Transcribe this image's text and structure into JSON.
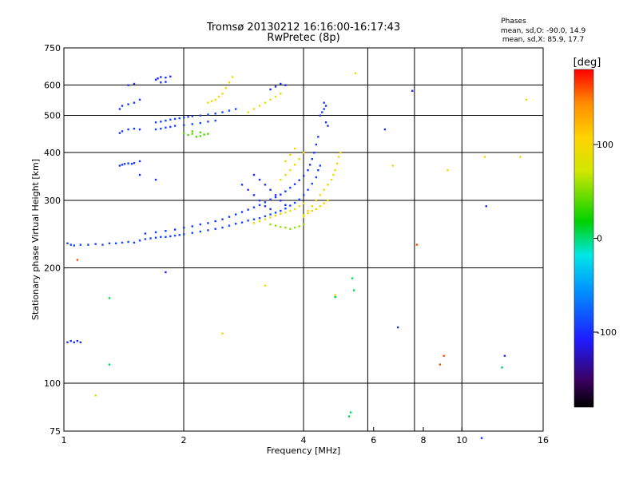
{
  "header": {
    "title": "Tromsø 20130212 16:16:00-16:17:43",
    "subtitle": "RwPretec (8p)",
    "phase_title": "Phases",
    "phase_o": "mean, sd,O: -90.0, 14.9",
    "phase_x": "mean, sd,X:  85.9, 17.7"
  },
  "chart_data": {
    "type": "scatter",
    "xlabel": "Frequency [MHz]",
    "ylabel": "Stationary phase Virtual Height [km]",
    "x_scale": "log",
    "y_scale": "log",
    "xlim": [
      1,
      16
    ],
    "ylim": [
      75,
      750
    ],
    "x_ticks": [
      "1",
      "2",
      "4",
      "6",
      "8",
      "10",
      "16"
    ],
    "x_tick_values": [
      1,
      2,
      4,
      6,
      8,
      10,
      16
    ],
    "y_ticks": [
      "75",
      "100",
      "200",
      "300",
      "400",
      "500",
      "600",
      "750"
    ],
    "y_tick_values": [
      75,
      100,
      200,
      300,
      400,
      500,
      600,
      750
    ],
    "x_gridlines": [
      2,
      4,
      5.8,
      7.6,
      10
    ],
    "y_gridlines": [
      100,
      200,
      300,
      400,
      500,
      600
    ],
    "grid": true,
    "colorbar": {
      "label": "[deg]",
      "range": [
        -180,
        180
      ],
      "ticks": [
        "100",
        "0",
        "-100"
      ],
      "tick_values": [
        100,
        0,
        -100
      ]
    },
    "series": [
      {
        "phase": -90,
        "points": [
          [
            1.02,
            232
          ],
          [
            1.04,
            230
          ],
          [
            1.06,
            229
          ],
          [
            1.1,
            230
          ],
          [
            1.15,
            230
          ],
          [
            1.2,
            231
          ],
          [
            1.25,
            230
          ],
          [
            1.3,
            232
          ],
          [
            1.35,
            232
          ],
          [
            1.4,
            233
          ],
          [
            1.45,
            234
          ],
          [
            1.5,
            233
          ],
          [
            1.55,
            236
          ],
          [
            1.6,
            238
          ],
          [
            1.65,
            239
          ],
          [
            1.7,
            240
          ],
          [
            1.75,
            241
          ],
          [
            1.8,
            241
          ],
          [
            1.85,
            242
          ],
          [
            1.9,
            243
          ],
          [
            1.95,
            244
          ],
          [
            2.0,
            245
          ],
          [
            2.1,
            247
          ],
          [
            2.2,
            249
          ],
          [
            2.3,
            251
          ],
          [
            2.4,
            253
          ],
          [
            2.5,
            255
          ],
          [
            2.6,
            258
          ],
          [
            2.7,
            261
          ],
          [
            2.8,
            263
          ],
          [
            2.9,
            266
          ],
          [
            3.0,
            268
          ],
          [
            3.1,
            270
          ],
          [
            3.2,
            273
          ],
          [
            3.3,
            276
          ],
          [
            3.4,
            279
          ],
          [
            3.5,
            282
          ],
          [
            3.6,
            286
          ],
          [
            3.7,
            291
          ],
          [
            3.8,
            296
          ],
          [
            3.9,
            302
          ],
          [
            4.0,
            310
          ],
          [
            4.1,
            320
          ],
          [
            4.2,
            332
          ],
          [
            4.3,
            345
          ],
          [
            4.35,
            360
          ],
          [
            4.4,
            370
          ]
        ]
      },
      {
        "phase": -95,
        "points": [
          [
            1.6,
            246
          ],
          [
            1.7,
            248
          ],
          [
            1.8,
            250
          ],
          [
            1.9,
            252
          ],
          [
            2.0,
            255
          ],
          [
            2.1,
            257
          ],
          [
            2.2,
            260
          ],
          [
            2.3,
            262
          ],
          [
            2.4,
            265
          ],
          [
            2.5,
            268
          ],
          [
            2.6,
            272
          ],
          [
            2.7,
            276
          ],
          [
            2.8,
            280
          ],
          [
            2.9,
            284
          ],
          [
            3.0,
            288
          ],
          [
            3.1,
            292
          ],
          [
            3.2,
            297
          ],
          [
            3.3,
            302
          ],
          [
            3.4,
            306
          ],
          [
            3.5,
            311
          ],
          [
            3.6,
            317
          ],
          [
            3.7,
            324
          ],
          [
            3.8,
            331
          ],
          [
            3.9,
            339
          ],
          [
            4.0,
            348
          ],
          [
            4.1,
            360
          ],
          [
            4.15,
            372
          ],
          [
            4.2,
            385
          ],
          [
            4.25,
            400
          ],
          [
            4.3,
            420
          ],
          [
            4.35,
            440
          ]
        ]
      },
      {
        "phase": -100,
        "points": [
          [
            1.02,
            128
          ],
          [
            1.04,
            129
          ],
          [
            1.06,
            128
          ],
          [
            1.08,
            129
          ],
          [
            1.1,
            128
          ]
        ]
      },
      {
        "phase": -95,
        "points": [
          [
            1.38,
            370
          ],
          [
            1.4,
            372
          ],
          [
            1.42,
            374
          ],
          [
            1.45,
            375
          ],
          [
            1.48,
            374
          ],
          [
            1.5,
            376
          ],
          [
            1.55,
            380
          ],
          [
            1.38,
            450
          ],
          [
            1.4,
            455
          ],
          [
            1.45,
            460
          ],
          [
            1.5,
            462
          ],
          [
            1.55,
            460
          ],
          [
            1.38,
            520
          ],
          [
            1.4,
            530
          ],
          [
            1.45,
            535
          ],
          [
            1.5,
            540
          ],
          [
            1.55,
            550
          ],
          [
            1.45,
            600
          ],
          [
            1.5,
            605
          ]
        ]
      },
      {
        "phase": -100,
        "points": [
          [
            1.7,
            620
          ],
          [
            1.72,
            625
          ],
          [
            1.75,
            630
          ],
          [
            1.8,
            628
          ],
          [
            1.85,
            632
          ],
          [
            1.75,
            610
          ],
          [
            1.8,
            612
          ]
        ]
      },
      {
        "phase": -90,
        "points": [
          [
            1.7,
            480
          ],
          [
            1.75,
            482
          ],
          [
            1.8,
            485
          ],
          [
            1.85,
            488
          ],
          [
            1.9,
            490
          ],
          [
            1.95,
            492
          ],
          [
            2.0,
            494
          ],
          [
            2.05,
            496
          ],
          [
            2.1,
            498
          ],
          [
            2.2,
            500
          ],
          [
            2.3,
            503
          ],
          [
            2.4,
            506
          ],
          [
            2.5,
            510
          ],
          [
            2.6,
            515
          ],
          [
            2.7,
            520
          ],
          [
            1.7,
            460
          ],
          [
            1.75,
            462
          ],
          [
            1.8,
            465
          ],
          [
            1.85,
            467
          ],
          [
            1.9,
            470
          ],
          [
            2.0,
            472
          ],
          [
            2.1,
            475
          ],
          [
            2.2,
            478
          ],
          [
            2.3,
            482
          ],
          [
            2.4,
            485
          ]
        ]
      },
      {
        "phase": 40,
        "points": [
          [
            2.0,
            450
          ],
          [
            2.05,
            445
          ],
          [
            2.1,
            448
          ],
          [
            2.15,
            440
          ],
          [
            2.2,
            442
          ],
          [
            2.25,
            446
          ],
          [
            2.3,
            448
          ],
          [
            2.1,
            455
          ],
          [
            2.2,
            452
          ]
        ]
      },
      {
        "phase": 100,
        "points": [
          [
            2.3,
            540
          ],
          [
            2.35,
            545
          ],
          [
            2.4,
            550
          ],
          [
            2.45,
            560
          ],
          [
            2.5,
            570
          ],
          [
            2.55,
            590
          ],
          [
            2.6,
            610
          ],
          [
            2.65,
            630
          ]
        ]
      },
      {
        "phase": 90,
        "points": [
          [
            2.9,
            510
          ],
          [
            3.0,
            520
          ],
          [
            3.1,
            530
          ],
          [
            3.2,
            540
          ],
          [
            3.3,
            550
          ],
          [
            3.4,
            560
          ],
          [
            3.5,
            570
          ]
        ]
      },
      {
        "phase": -100,
        "points": [
          [
            3.3,
            585
          ],
          [
            3.4,
            595
          ],
          [
            3.5,
            605
          ],
          [
            3.6,
            600
          ]
        ]
      },
      {
        "phase": -95,
        "points": [
          [
            4.4,
            500
          ],
          [
            4.45,
            510
          ],
          [
            4.5,
            520
          ],
          [
            4.55,
            530
          ],
          [
            4.5,
            540
          ],
          [
            4.55,
            480
          ],
          [
            4.6,
            470
          ]
        ]
      },
      {
        "phase": 100,
        "points": [
          [
            4.0,
            275
          ],
          [
            4.1,
            282
          ],
          [
            4.2,
            290
          ],
          [
            4.3,
            300
          ],
          [
            4.4,
            310
          ],
          [
            4.5,
            320
          ],
          [
            4.6,
            330
          ],
          [
            4.7,
            340
          ],
          [
            4.75,
            350
          ],
          [
            4.8,
            360
          ],
          [
            4.85,
            375
          ],
          [
            4.9,
            390
          ],
          [
            4.95,
            400
          ],
          [
            4.6,
            300
          ],
          [
            4.5,
            295
          ],
          [
            4.4,
            290
          ],
          [
            4.3,
            285
          ],
          [
            4.2,
            282
          ],
          [
            4.1,
            278
          ],
          [
            4.0,
            272
          ]
        ]
      },
      {
        "phase": 90,
        "points": [
          [
            3.0,
            262
          ],
          [
            3.1,
            265
          ],
          [
            3.2,
            268
          ],
          [
            3.3,
            271
          ],
          [
            3.4,
            274
          ],
          [
            3.5,
            277
          ],
          [
            3.6,
            279
          ],
          [
            3.7,
            282
          ],
          [
            3.8,
            285
          ],
          [
            3.9,
            290
          ],
          [
            4.0,
            295
          ]
        ]
      },
      {
        "phase": -100,
        "points": [
          [
            2.8,
            330
          ],
          [
            2.9,
            320
          ],
          [
            3.0,
            310
          ],
          [
            3.1,
            300
          ],
          [
            3.2,
            290
          ],
          [
            3.3,
            285
          ],
          [
            3.0,
            350
          ],
          [
            3.1,
            340
          ],
          [
            3.2,
            330
          ],
          [
            3.3,
            320
          ],
          [
            3.4,
            310
          ],
          [
            3.5,
            300
          ],
          [
            3.6,
            292
          ]
        ]
      },
      {
        "phase": 100,
        "points": [
          [
            3.5,
            340
          ],
          [
            3.6,
            350
          ],
          [
            3.7,
            360
          ],
          [
            3.8,
            372
          ],
          [
            3.9,
            385
          ],
          [
            4.0,
            400
          ],
          [
            3.6,
            380
          ],
          [
            3.7,
            395
          ],
          [
            3.8,
            410
          ]
        ]
      },
      {
        "phase": 55,
        "points": [
          [
            3.3,
            260
          ],
          [
            3.4,
            258
          ],
          [
            3.5,
            256
          ],
          [
            3.6,
            255
          ],
          [
            3.7,
            253
          ],
          [
            3.8,
            255
          ],
          [
            3.9,
            257
          ],
          [
            4.0,
            260
          ]
        ]
      },
      {
        "phase": -100,
        "points": [
          [
            1.8,
            195
          ],
          [
            1.55,
            350
          ],
          [
            1.7,
            340
          ],
          [
            7.5,
            580
          ],
          [
            6.4,
            460
          ],
          [
            6.9,
            140
          ],
          [
            11.2,
            72
          ],
          [
            11.5,
            290
          ],
          [
            12.8,
            118
          ]
        ]
      },
      {
        "phase": 100,
        "points": [
          [
            5.4,
            645
          ],
          [
            14.5,
            550
          ],
          [
            14.0,
            390
          ],
          [
            9.2,
            360
          ],
          [
            6.7,
            370
          ],
          [
            11.4,
            390
          ],
          [
            3.2,
            180
          ],
          [
            4.8,
            170
          ],
          [
            1.2,
            93
          ],
          [
            2.5,
            135
          ]
        ]
      },
      {
        "phase": 5,
        "points": [
          [
            5.3,
            188
          ],
          [
            5.35,
            175
          ],
          [
            5.2,
            82
          ],
          [
            5.25,
            84
          ],
          [
            1.3,
            167
          ],
          [
            1.3,
            112
          ],
          [
            4.8,
            168
          ],
          [
            12.6,
            110
          ]
        ]
      },
      {
        "phase": 160,
        "points": [
          [
            7.7,
            230
          ],
          [
            9.0,
            118
          ],
          [
            8.8,
            112
          ],
          [
            1.08,
            210
          ]
        ]
      }
    ]
  }
}
